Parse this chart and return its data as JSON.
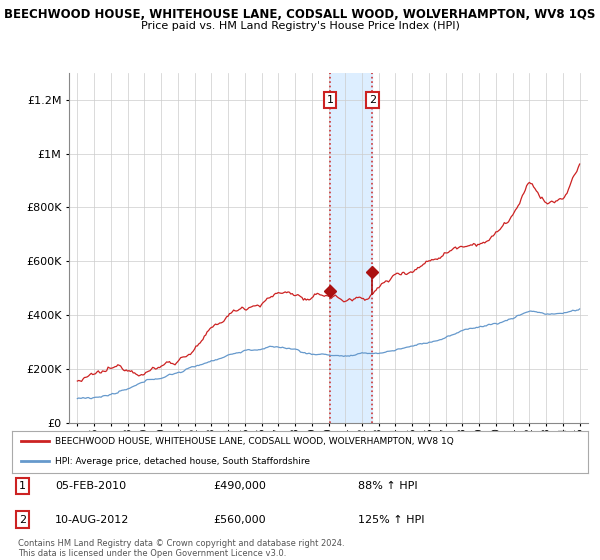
{
  "title": "BEECHWOOD HOUSE, WHITEHOUSE LANE, CODSALL WOOD, WOLVERHAMPTON, WV8 1QS",
  "subtitle": "Price paid vs. HM Land Registry's House Price Index (HPI)",
  "legend_line1": "BEECHWOOD HOUSE, WHITEHOUSE LANE, CODSALL WOOD, WOLVERHAMPTON, WV8 1Q",
  "legend_line2": "HPI: Average price, detached house, South Staffordshire",
  "footer": "Contains HM Land Registry data © Crown copyright and database right 2024.\nThis data is licensed under the Open Government Licence v3.0.",
  "transaction1": {
    "label": "1",
    "date": "05-FEB-2010",
    "price": 490000,
    "hpi_pct": "88% ↑ HPI",
    "x_year": 2010.09
  },
  "transaction2": {
    "label": "2",
    "date": "10-AUG-2012",
    "price": 560000,
    "hpi_pct": "125% ↑ HPI",
    "x_year": 2012.61
  },
  "highlight_start": 2010.09,
  "highlight_end": 2012.61,
  "hpi_line_color": "#6699cc",
  "price_line_color": "#cc2222",
  "marker_color": "#aa1111",
  "highlight_color": "#ddeeff",
  "dotted_line_color": "#cc3333",
  "grid_color": "#cccccc",
  "background_color": "#ffffff",
  "ylim": [
    0,
    1300000
  ],
  "xlim_start": 1994.5,
  "xlim_end": 2025.5,
  "red_keyframes_x": [
    1995,
    1996,
    1997,
    1998,
    1999,
    2000,
    2001,
    2002,
    2003,
    2004,
    2005,
    2006,
    2007,
    2008,
    2009,
    2010,
    2011,
    2012,
    2013,
    2014,
    2015,
    2016,
    2017,
    2018,
    2019,
    2020,
    2021,
    2022,
    2023,
    2024,
    2025
  ],
  "red_keyframes_y": [
    155000,
    160000,
    170000,
    180000,
    195000,
    215000,
    245000,
    290000,
    340000,
    390000,
    430000,
    460000,
    490000,
    490000,
    460000,
    475000,
    455000,
    465000,
    510000,
    555000,
    590000,
    630000,
    670000,
    710000,
    740000,
    770000,
    840000,
    940000,
    870000,
    875000,
    1000000
  ],
  "blue_keyframes_x": [
    1995,
    1996,
    1997,
    1998,
    1999,
    2000,
    2001,
    2002,
    2003,
    2004,
    2005,
    2006,
    2007,
    2008,
    2009,
    2010,
    2011,
    2012,
    2013,
    2014,
    2015,
    2016,
    2017,
    2018,
    2019,
    2020,
    2021,
    2022,
    2023,
    2024,
    2025
  ],
  "blue_keyframes_y": [
    90000,
    97000,
    107000,
    120000,
    140000,
    160000,
    180000,
    200000,
    225000,
    250000,
    268000,
    275000,
    278000,
    270000,
    252000,
    252000,
    248000,
    248000,
    252000,
    265000,
    280000,
    295000,
    315000,
    335000,
    355000,
    365000,
    385000,
    415000,
    405000,
    405000,
    420000
  ]
}
